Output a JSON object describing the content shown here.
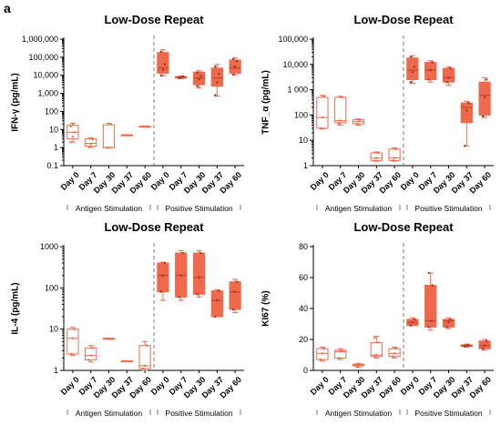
{
  "figure_label": "a",
  "colors": {
    "accent": "#ef6a4d",
    "axis": "#000000",
    "divider": "#777777"
  },
  "chart_data": [
    {
      "type": "box",
      "title": "Low-Dose Repeat",
      "ylabel": "IFN-γ (pg/mL)",
      "yscale": "log",
      "ylim": [
        0.1,
        1000000
      ],
      "yticks": [
        0.1,
        1,
        10,
        100,
        1000,
        10000,
        100000,
        1000000
      ],
      "ytick_labels": [
        "0.1",
        "1",
        "10",
        "100",
        "1,000",
        "10,000",
        "100,000",
        "1,000,000"
      ],
      "categories": [
        "Day 0",
        "Day 7",
        "Day 30",
        "Day 37",
        "Day 60",
        "Day 0",
        "Day 7",
        "Day 30",
        "Day 37",
        "Day 60"
      ],
      "groups": [
        {
          "label": "Antigen Stimulation",
          "from": 0,
          "to": 4
        },
        {
          "label": "Positive Stimulation",
          "from": 5,
          "to": 9
        }
      ],
      "boxes": [
        {
          "category": "Day 0",
          "group": "Antigen Stimulation",
          "filled": false,
          "min": 2,
          "q1": 3,
          "median": 7,
          "q3": 17,
          "max": 22,
          "points": [
            2,
            4,
            7,
            15,
            21
          ]
        },
        {
          "category": "Day 7",
          "group": "Antigen Stimulation",
          "filled": false,
          "min": 1,
          "q1": 1.2,
          "median": 1.7,
          "q3": 3,
          "max": 3.5,
          "points": [
            1.1,
            1.6,
            2.8
          ]
        },
        {
          "category": "Day 30",
          "group": "Antigen Stimulation",
          "filled": false,
          "min": 1,
          "q1": 1,
          "median": 1,
          "q3": 18,
          "max": 22,
          "points": [
            1,
            1,
            20
          ]
        },
        {
          "category": "Day 37",
          "group": "Antigen Stimulation",
          "filled": false,
          "min": 5,
          "q1": 5,
          "median": 5,
          "q3": 5,
          "max": 5,
          "points": [
            5
          ]
        },
        {
          "category": "Day 60",
          "group": "Antigen Stimulation",
          "filled": false,
          "min": 15,
          "q1": 15,
          "median": 15,
          "q3": 15,
          "max": 15,
          "points": [
            15
          ]
        },
        {
          "category": "Day 0",
          "group": "Positive Stimulation",
          "filled": true,
          "min": 9000,
          "q1": 13000,
          "median": 25000,
          "q3": 180000,
          "max": 260000,
          "points": [
            10000,
            20000,
            40000,
            200000
          ]
        },
        {
          "category": "Day 7",
          "group": "Positive Stimulation",
          "filled": true,
          "min": 6500,
          "q1": 7000,
          "median": 7800,
          "q3": 8500,
          "max": 9000,
          "points": [
            7000,
            7800,
            8800
          ]
        },
        {
          "category": "Day 30",
          "group": "Positive Stimulation",
          "filled": true,
          "min": 2000,
          "q1": 3000,
          "median": 7000,
          "q3": 15000,
          "max": 18000,
          "points": [
            2500,
            6000,
            9000,
            14000
          ]
        },
        {
          "category": "Day 37",
          "group": "Positive Stimulation",
          "filled": true,
          "min": 700,
          "q1": 2500,
          "median": 7000,
          "q3": 25000,
          "max": 40000,
          "points": [
            800,
            4000,
            12000,
            30000
          ]
        },
        {
          "category": "Day 60",
          "group": "Positive Stimulation",
          "filled": true,
          "min": 10000,
          "q1": 13000,
          "median": 25000,
          "q3": 70000,
          "max": 90000,
          "points": [
            11000,
            30000,
            60000,
            80000
          ]
        }
      ]
    },
    {
      "type": "box",
      "title": "Low-Dose Repeat",
      "ylabel": "TNF_α (pg/mL)",
      "yscale": "log",
      "ylim": [
        1,
        100000
      ],
      "yticks": [
        1,
        10,
        100,
        1000,
        10000,
        100000
      ],
      "ytick_labels": [
        "1",
        "10",
        "100",
        "1 000",
        "10,000",
        "100,000"
      ],
      "categories": [
        "Day 0",
        "Day 7",
        "Day 30",
        "Day 37",
        "Day 60",
        "Day 0",
        "Day 7",
        "Day 30",
        "Day 37",
        "Day 60"
      ],
      "groups": [
        {
          "label": "Antigen Stimulation",
          "from": 0,
          "to": 4
        },
        {
          "label": "Positive Stimulation",
          "from": 5,
          "to": 9
        }
      ],
      "boxes": [
        {
          "category": "Day 0",
          "group": "Antigen Stimulation",
          "filled": false,
          "min": 28,
          "q1": 30,
          "median": 80,
          "q3": 500,
          "max": 600,
          "points": [
            30,
            80,
            550
          ]
        },
        {
          "category": "Day 7",
          "group": "Antigen Stimulation",
          "filled": false,
          "min": 40,
          "q1": 50,
          "median": 60,
          "q3": 500,
          "max": 550,
          "points": [
            45,
            60,
            500
          ]
        },
        {
          "category": "Day 30",
          "group": "Antigen Stimulation",
          "filled": false,
          "min": 40,
          "q1": 45,
          "median": 55,
          "q3": 65,
          "max": 70,
          "points": [
            45,
            55,
            65
          ]
        },
        {
          "category": "Day 37",
          "group": "Antigen Stimulation",
          "filled": false,
          "min": 1.5,
          "q1": 1.6,
          "median": 2,
          "q3": 3.2,
          "max": 3.5,
          "points": [
            1.6,
            2,
            3.2
          ]
        },
        {
          "category": "Day 60",
          "group": "Antigen Stimulation",
          "filled": false,
          "min": 1.5,
          "q1": 1.6,
          "median": 2,
          "q3": 4.5,
          "max": 5,
          "points": [
            1.6,
            2,
            4.5
          ]
        },
        {
          "category": "Day 0",
          "group": "Positive Stimulation",
          "filled": true,
          "min": 1800,
          "q1": 2500,
          "median": 6000,
          "q3": 18000,
          "max": 22000,
          "points": [
            2000,
            5000,
            8000,
            20000
          ]
        },
        {
          "category": "Day 7",
          "group": "Positive Stimulation",
          "filled": true,
          "min": 2000,
          "q1": 2500,
          "median": 6000,
          "q3": 12000,
          "max": 14000,
          "points": [
            2500,
            6000,
            12000
          ]
        },
        {
          "category": "Day 30",
          "group": "Positive Stimulation",
          "filled": true,
          "min": 1500,
          "q1": 2000,
          "median": 3000,
          "q3": 7000,
          "max": 8000,
          "points": [
            2000,
            3000,
            7000
          ]
        },
        {
          "category": "Day 37",
          "group": "Positive Stimulation",
          "filled": true,
          "min": 6,
          "q1": 50,
          "median": 200,
          "q3": 300,
          "max": 350,
          "points": [
            6,
            150,
            300
          ]
        },
        {
          "category": "Day 60",
          "group": "Positive Stimulation",
          "filled": true,
          "min": 80,
          "q1": 100,
          "median": 600,
          "q3": 2000,
          "max": 3000,
          "points": [
            90,
            500,
            2500
          ]
        }
      ]
    },
    {
      "type": "box",
      "title": "Low-Dose Repeat",
      "ylabel": "IL-4 (pg/mL)",
      "yscale": "log",
      "ylim": [
        1,
        1000
      ],
      "yticks": [
        1,
        10,
        100,
        1000
      ],
      "ytick_labels": [
        "1",
        "10",
        "100",
        "1000"
      ],
      "categories": [
        "Day 0",
        "Day 7",
        "Day 30",
        "Day 37",
        "Day 60",
        "Day 0",
        "Day 7",
        "Day 30",
        "Day 37",
        "Day 60"
      ],
      "groups": [
        {
          "label": "Antigen Stimulation",
          "from": 0,
          "to": 4
        },
        {
          "label": "Positive Stimulation",
          "from": 5,
          "to": 9
        }
      ],
      "boxes": [
        {
          "category": "Day 0",
          "group": "Antigen Stimulation",
          "filled": false,
          "min": 2.3,
          "q1": 2.5,
          "median": 6,
          "q3": 10,
          "max": 11,
          "points": [
            2.5,
            6,
            10
          ]
        },
        {
          "category": "Day 7",
          "group": "Antigen Stimulation",
          "filled": false,
          "min": 1.6,
          "q1": 1.8,
          "median": 2.3,
          "q3": 3.5,
          "max": 4,
          "points": [
            1.8,
            2.3,
            3.5
          ]
        },
        {
          "category": "Day 30",
          "group": "Antigen Stimulation",
          "filled": false,
          "min": 6,
          "q1": 6,
          "median": 6,
          "q3": 6,
          "max": 6,
          "points": [
            6
          ]
        },
        {
          "category": "Day 37",
          "group": "Antigen Stimulation",
          "filled": false,
          "min": 1.7,
          "q1": 1.7,
          "median": 1.7,
          "q3": 1.7,
          "max": 1.7,
          "points": [
            1.7
          ]
        },
        {
          "category": "Day 60",
          "group": "Antigen Stimulation",
          "filled": false,
          "min": 1,
          "q1": 1.1,
          "median": 1.3,
          "q3": 4,
          "max": 5,
          "points": [
            1.1,
            1.3,
            4
          ]
        },
        {
          "category": "Day 0",
          "group": "Positive Stimulation",
          "filled": true,
          "min": 50,
          "q1": 80,
          "median": 200,
          "q3": 400,
          "max": 420,
          "points": [
            80,
            200,
            400
          ]
        },
        {
          "category": "Day 7",
          "group": "Positive Stimulation",
          "filled": true,
          "min": 50,
          "q1": 60,
          "median": 200,
          "q3": 700,
          "max": 800,
          "points": [
            60,
            200,
            700
          ]
        },
        {
          "category": "Day 30",
          "group": "Positive Stimulation",
          "filled": true,
          "min": 60,
          "q1": 70,
          "median": 180,
          "q3": 700,
          "max": 800,
          "points": [
            70,
            180,
            700
          ]
        },
        {
          "category": "Day 37",
          "group": "Positive Stimulation",
          "filled": true,
          "min": 20,
          "q1": 20,
          "median": 50,
          "q3": 85,
          "max": 90,
          "points": [
            20,
            50,
            85
          ]
        },
        {
          "category": "Day 60",
          "group": "Positive Stimulation",
          "filled": true,
          "min": 25,
          "q1": 30,
          "median": 80,
          "q3": 140,
          "max": 160,
          "points": [
            30,
            80,
            140
          ]
        }
      ]
    },
    {
      "type": "box",
      "title": "Low-Dose Repeat",
      "ylabel": "KI67 (%)",
      "yscale": "linear",
      "ylim": [
        0,
        80
      ],
      "yticks": [
        0,
        20,
        40,
        60,
        80
      ],
      "ytick_labels": [
        "0",
        "20",
        "40",
        "60",
        "80"
      ],
      "categories": [
        "Day 0",
        "Day 7",
        "Day 30",
        "Day 37",
        "Day 60",
        "Day 0",
        "Day 7",
        "Day 30",
        "Day 37",
        "Day 60"
      ],
      "groups": [
        {
          "label": "Antigen Stimulation",
          "from": 0,
          "to": 4
        },
        {
          "label": "Positive Stimulation",
          "from": 5,
          "to": 9
        }
      ],
      "boxes": [
        {
          "category": "Day 0",
          "group": "Antigen Stimulation",
          "filled": false,
          "min": 6,
          "q1": 7,
          "median": 11,
          "q3": 14,
          "max": 15,
          "points": [
            7,
            11,
            14
          ]
        },
        {
          "category": "Day 7",
          "group": "Antigen Stimulation",
          "filled": false,
          "min": 7,
          "q1": 8,
          "median": 12,
          "q3": 13,
          "max": 14,
          "points": [
            8,
            12,
            13
          ]
        },
        {
          "category": "Day 30",
          "group": "Antigen Stimulation",
          "filled": false,
          "min": 2,
          "q1": 3,
          "median": 3.5,
          "q3": 4,
          "max": 4.5,
          "points": [
            2.5,
            3.5,
            4
          ]
        },
        {
          "category": "Day 37",
          "group": "Antigen Stimulation",
          "filled": false,
          "min": 8,
          "q1": 9,
          "median": 10,
          "q3": 18,
          "max": 22,
          "points": [
            9,
            10,
            18,
            21
          ]
        },
        {
          "category": "Day 60",
          "group": "Antigen Stimulation",
          "filled": false,
          "min": 8,
          "q1": 9,
          "median": 11,
          "q3": 14,
          "max": 15,
          "points": [
            9,
            11,
            14
          ]
        },
        {
          "category": "Day 0",
          "group": "Positive Stimulation",
          "filled": true,
          "min": 29,
          "q1": 29,
          "median": 31,
          "q3": 33,
          "max": 34,
          "points": [
            29,
            31,
            33
          ]
        },
        {
          "category": "Day 7",
          "group": "Positive Stimulation",
          "filled": true,
          "min": 26,
          "q1": 28,
          "median": 32,
          "q3": 55,
          "max": 63,
          "points": [
            28,
            32,
            55,
            63
          ]
        },
        {
          "category": "Day 30",
          "group": "Positive Stimulation",
          "filled": true,
          "min": 27,
          "q1": 28,
          "median": 32,
          "q3": 33,
          "max": 34,
          "points": [
            28,
            31,
            33
          ]
        },
        {
          "category": "Day 37",
          "group": "Positive Stimulation",
          "filled": true,
          "min": 15,
          "q1": 15.5,
          "median": 16,
          "q3": 16.5,
          "max": 17,
          "points": [
            15.5,
            16,
            16.5
          ]
        },
        {
          "category": "Day 60",
          "group": "Positive Stimulation",
          "filled": true,
          "min": 13,
          "q1": 14,
          "median": 16,
          "q3": 19,
          "max": 20,
          "points": [
            14,
            16,
            19
          ]
        }
      ]
    }
  ]
}
